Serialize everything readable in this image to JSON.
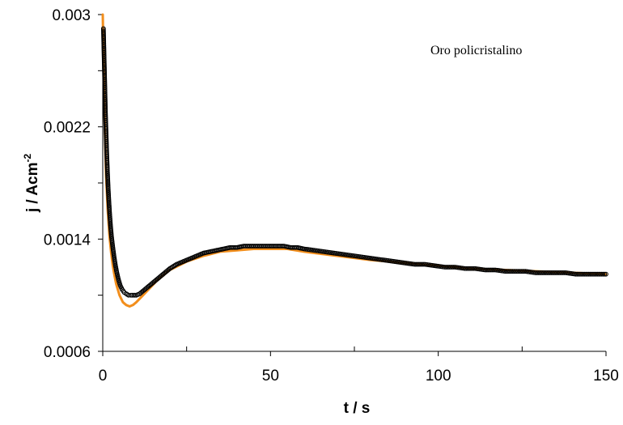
{
  "chart_data": {
    "type": "scatter",
    "title": "",
    "xlabel": "t / s",
    "ylabel_main": "j / Acm",
    "ylabel_sup": "-2",
    "annotation": "Oro policristalino",
    "xlim": [
      0,
      150
    ],
    "ylim": [
      0.0006,
      0.003
    ],
    "x_ticks": [
      0,
      50,
      100,
      150
    ],
    "x_tick_labels": [
      "0",
      "50",
      "100",
      "150"
    ],
    "y_ticks": [
      0.0006,
      0.0014,
      0.0022,
      0.003
    ],
    "y_tick_labels": [
      "0.0006",
      "0.0014",
      "0.0022",
      "0.003"
    ],
    "grid": false,
    "series": [
      {
        "kind": "line",
        "color": "#f28e1c",
        "x": [
          0,
          0.3,
          0.6,
          1,
          1.5,
          2,
          2.5,
          3,
          3.5,
          4,
          5,
          6,
          7,
          8,
          9,
          10,
          12,
          14,
          16,
          18,
          20,
          25,
          30,
          35,
          40,
          45,
          50,
          55,
          60,
          70,
          80,
          90,
          100,
          110,
          120,
          130,
          140,
          150
        ],
        "y": [
          0.003,
          0.0026,
          0.0022,
          0.00185,
          0.0016,
          0.00142,
          0.0013,
          0.00121,
          0.00114,
          0.00108,
          0.001,
          0.00095,
          0.00093,
          0.00092,
          0.00093,
          0.00095,
          0.001,
          0.00105,
          0.0011,
          0.00114,
          0.00118,
          0.00124,
          0.00128,
          0.00131,
          0.00132,
          0.00133,
          0.00133,
          0.00133,
          0.00131,
          0.00128,
          0.00125,
          0.00123,
          0.00121,
          0.00119,
          0.00118,
          0.00117,
          0.00116,
          0.00115
        ]
      },
      {
        "kind": "points",
        "color": "#000000",
        "x": [
          0.2,
          0.4,
          0.6,
          0.8,
          1.0,
          1.2,
          1.4,
          1.6,
          1.8,
          2.0,
          2.3,
          2.6,
          3.0,
          3.4,
          3.8,
          4.2,
          4.7,
          5.2,
          5.8,
          6.4,
          7.0,
          7.7,
          8.4,
          9.2,
          10,
          11,
          12,
          13,
          14,
          15,
          16,
          17,
          18,
          19,
          20,
          22,
          24,
          26,
          28,
          30,
          32,
          34,
          36,
          38,
          40,
          42,
          44,
          46,
          48,
          50,
          52,
          54,
          56,
          58,
          60,
          63,
          66,
          69,
          72,
          75,
          78,
          81,
          84,
          87,
          90,
          93,
          96,
          99,
          102,
          105,
          108,
          111,
          114,
          117,
          120,
          123,
          126,
          129,
          132,
          135,
          138,
          141,
          144,
          147,
          150
        ],
        "y": [
          0.0029,
          0.0027,
          0.0025,
          0.0023,
          0.00215,
          0.002,
          0.00188,
          0.00177,
          0.00168,
          0.0016,
          0.0015,
          0.00142,
          0.00134,
          0.00127,
          0.00121,
          0.00116,
          0.00111,
          0.00107,
          0.00104,
          0.00102,
          0.00101,
          0.001,
          0.001,
          0.001,
          0.001,
          0.00101,
          0.00103,
          0.00105,
          0.00107,
          0.00109,
          0.00111,
          0.00113,
          0.00115,
          0.00117,
          0.00119,
          0.00122,
          0.00124,
          0.00126,
          0.00128,
          0.0013,
          0.00131,
          0.00132,
          0.00133,
          0.00134,
          0.00134,
          0.00135,
          0.00135,
          0.00135,
          0.00135,
          0.00135,
          0.00135,
          0.00135,
          0.00134,
          0.00134,
          0.00133,
          0.00132,
          0.00131,
          0.0013,
          0.00129,
          0.00128,
          0.00127,
          0.00126,
          0.00125,
          0.00124,
          0.00123,
          0.00122,
          0.00122,
          0.00121,
          0.0012,
          0.0012,
          0.00119,
          0.00119,
          0.00118,
          0.00118,
          0.00117,
          0.00117,
          0.00117,
          0.00116,
          0.00116,
          0.00116,
          0.00116,
          0.00115,
          0.00115,
          0.00115,
          0.00115
        ]
      }
    ]
  }
}
